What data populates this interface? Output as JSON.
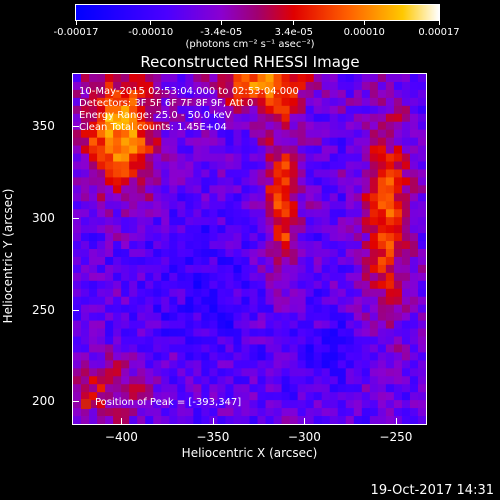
{
  "chart_data": {
    "type": "heatmap",
    "title": "Reconstructed RHESSI Image",
    "xlabel": "Heliocentric X (arcsec)",
    "ylabel": "Heliocentric Y (arcsec)",
    "xlim": [
      -427,
      -233
    ],
    "ylim": [
      187,
      379
    ],
    "x_ticks": [
      -400,
      -350,
      -300,
      -250
    ],
    "y_ticks": [
      200,
      250,
      300,
      350
    ],
    "colorbar": {
      "min": -0.00017,
      "max": 0.00017,
      "tick_labels": [
        "-0.00017",
        "-0.00010",
        "-3.4e-05",
        "3.4e-05",
        "0.00010",
        "0.00017"
      ],
      "tick_values": [
        -0.00017,
        -0.0001,
        -3.4e-05,
        3.4e-05,
        0.0001,
        0.00017
      ],
      "unit_label": "(photons cm⁻² s⁻¹ asec⁻²)",
      "colormap": [
        "#0000ff",
        "#4b00ff",
        "#8a00d0",
        "#c00080",
        "#ff1a00",
        "#ff7000",
        "#ffc000",
        "#ffffff"
      ]
    },
    "annotations": [
      "10-May-2015 02:53:04.000 to 02:53:04.000",
      "Detectors: 3F 5F 6F 7F 8F 9F, Att 0",
      "Energy Range: 25.0 - 50.0 keV",
      "Clean   Total counts: 1.45E+04"
    ],
    "peak_label": "Position of Peak = [-393,347]",
    "peak_position": [
      -393,
      347
    ]
  },
  "footer": {
    "date": "19-Oct-2017 14:31"
  }
}
